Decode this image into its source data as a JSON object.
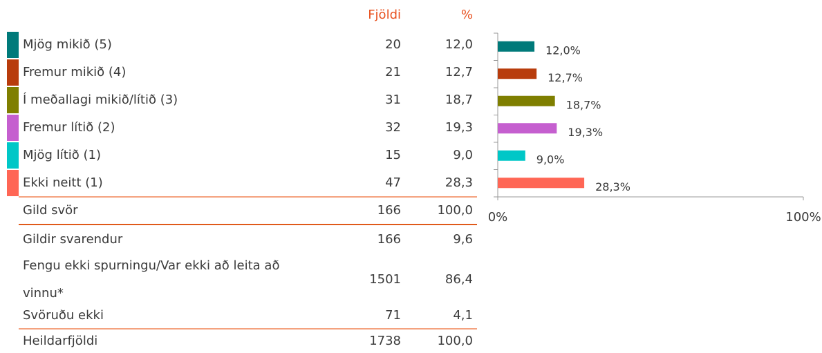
{
  "table": {
    "headers": [
      "Fjöldi",
      "%"
    ],
    "rows": [
      {
        "label": "Mjög mikið (5)",
        "count": "20",
        "percent": "12,0"
      },
      {
        "label": "Fremur mikið (4)",
        "count": "21",
        "percent": "12,7"
      },
      {
        "label": "Í meðallagi mikið/lítið (3)",
        "count": "31",
        "percent": "18,7"
      },
      {
        "label": "Fremur lítið (2)",
        "count": "32",
        "percent": "19,3"
      },
      {
        "label": "Mjög lítið (1)",
        "count": "15",
        "percent": "9,0"
      },
      {
        "label": "Ekki neitt (1)",
        "count": "47",
        "percent": "28,3"
      }
    ],
    "total": {
      "label": "Gild svör",
      "count": "166",
      "percent": "100,0"
    },
    "summary": [
      {
        "label": "Gildir svarendur",
        "count": "166",
        "percent": "9,6"
      },
      {
        "label": [
          "Fengu ekki spurningu/Var ekki að leita að",
          "vinnu*"
        ],
        "count": "1501",
        "percent": "86,4"
      },
      {
        "label": "Svöruðu ekki",
        "count": "71",
        "percent": "4,1"
      }
    ],
    "grand_total": {
      "label": "Heildarfjöldi",
      "count": "1738",
      "percent": "100,0"
    }
  },
  "chart_data": {
    "type": "bar",
    "orientation": "horizontal",
    "values": [
      12.0,
      12.7,
      18.7,
      19.3,
      9.0,
      28.3
    ],
    "value_labels": [
      "12,0%",
      "12,7%",
      "18,7%",
      "19,3%",
      "9,0%",
      "28,3%"
    ],
    "colors": [
      "#007a7a",
      "#b83c0c",
      "#7f7f00",
      "#c55fcf",
      "#00c7c7",
      "#ff6655"
    ],
    "xlim": [
      0,
      100
    ],
    "xticks": [
      {
        "value": 0,
        "label": "0%"
      },
      {
        "value": 100,
        "label": "100%"
      }
    ]
  }
}
